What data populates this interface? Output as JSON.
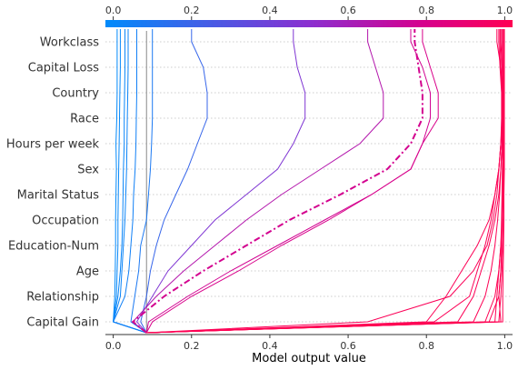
{
  "chart_data": {
    "type": "line",
    "xlabel": "Model output value",
    "xlim": [
      -0.02,
      1.02
    ],
    "x_ticks": [
      0.0,
      0.2,
      0.4,
      0.6,
      0.8,
      1.0
    ],
    "x_tick_labels": [
      "0.0",
      "0.2",
      "0.4",
      "0.6",
      "0.8",
      "1.0"
    ],
    "base_value": 0.085,
    "features": [
      "Workclass",
      "Capital Loss",
      "Country",
      "Race",
      "Hours per week",
      "Sex",
      "Marital Status",
      "Occupation",
      "Education-Num",
      "Age",
      "Relationship",
      "Capital Gain"
    ],
    "colorbar": [
      "#008bfb",
      "#ff0052"
    ],
    "grid": true,
    "highlighted_series_index": 11,
    "series": [
      {
        "values": [
          0.085,
          0.0,
          0.004,
          0.005,
          0.006,
          0.006,
          0.007,
          0.008,
          0.007,
          0.009,
          0.01,
          0.01,
          0.01
        ]
      },
      {
        "values": [
          0.085,
          0.0,
          0.008,
          0.01,
          0.012,
          0.012,
          0.013,
          0.014,
          0.015,
          0.016,
          0.017,
          0.018,
          0.018
        ]
      },
      {
        "values": [
          0.085,
          0.0,
          0.012,
          0.018,
          0.022,
          0.024,
          0.025,
          0.026,
          0.028,
          0.028,
          0.029,
          0.03,
          0.03
        ]
      },
      {
        "values": [
          0.085,
          0.0,
          0.018,
          0.022,
          0.026,
          0.03,
          0.032,
          0.034,
          0.035,
          0.036,
          0.037,
          0.038,
          0.038
        ]
      },
      {
        "values": [
          0.085,
          0.0,
          0.03,
          0.04,
          0.045,
          0.05,
          0.052,
          0.056,
          0.058,
          0.059,
          0.06,
          0.06,
          0.06
        ]
      },
      {
        "values": [
          0.085,
          0.045,
          0.055,
          0.065,
          0.07,
          0.085,
          0.09,
          0.095,
          0.098,
          0.1,
          0.1,
          0.1,
          0.1
        ]
      },
      {
        "values": [
          0.085,
          0.07,
          0.085,
          0.095,
          0.11,
          0.13,
          0.16,
          0.19,
          0.215,
          0.24,
          0.24,
          0.23,
          0.2
        ]
      },
      {
        "values": [
          0.085,
          0.06,
          0.1,
          0.14,
          0.2,
          0.26,
          0.34,
          0.42,
          0.46,
          0.49,
          0.49,
          0.47,
          0.46
        ]
      },
      {
        "values": [
          0.085,
          0.05,
          0.11,
          0.18,
          0.26,
          0.34,
          0.43,
          0.53,
          0.63,
          0.69,
          0.69,
          0.67,
          0.65
        ]
      },
      {
        "values": [
          0.085,
          0.09,
          0.19,
          0.3,
          0.42,
          0.54,
          0.66,
          0.76,
          0.79,
          0.81,
          0.81,
          0.79,
          0.76
        ]
      },
      {
        "values": [
          0.085,
          0.1,
          0.2,
          0.32,
          0.43,
          0.55,
          0.66,
          0.76,
          0.79,
          0.83,
          0.83,
          0.81,
          0.79
        ]
      },
      {
        "values": [
          0.085,
          0.05,
          0.13,
          0.23,
          0.34,
          0.45,
          0.58,
          0.7,
          0.76,
          0.79,
          0.79,
          0.78,
          0.77
        ]
      },
      {
        "values": [
          0.085,
          0.65,
          0.86,
          0.92,
          0.955,
          0.97,
          0.98,
          0.985,
          0.99,
          0.995,
          0.995,
          0.99,
          0.98
        ]
      },
      {
        "values": [
          0.085,
          0.82,
          0.91,
          0.93,
          0.95,
          0.965,
          0.975,
          0.985,
          0.99,
          0.992,
          0.992,
          0.988,
          0.985
        ]
      },
      {
        "values": [
          0.085,
          0.8,
          0.85,
          0.89,
          0.93,
          0.96,
          0.975,
          0.985,
          0.99,
          0.993,
          0.993,
          0.99,
          0.988
        ]
      },
      {
        "values": [
          0.085,
          0.88,
          0.92,
          0.94,
          0.96,
          0.975,
          0.985,
          0.99,
          0.993,
          0.995,
          0.995,
          0.993,
          0.99
        ]
      },
      {
        "values": [
          0.085,
          0.92,
          0.95,
          0.965,
          0.975,
          0.982,
          0.987,
          0.99,
          0.993,
          0.995,
          0.995,
          0.994,
          0.993
        ]
      },
      {
        "values": [
          0.085,
          0.95,
          0.975,
          0.985,
          0.99,
          0.992,
          0.993,
          0.994,
          0.995,
          0.996,
          0.996,
          0.996,
          0.996
        ]
      },
      {
        "values": [
          0.085,
          0.96,
          0.985,
          0.99,
          0.992,
          0.993,
          0.994,
          0.995,
          0.996,
          0.997,
          0.997,
          0.997,
          0.997
        ]
      },
      {
        "values": [
          0.085,
          0.99,
          0.985,
          0.99,
          0.992,
          0.993,
          0.994,
          0.995,
          0.996,
          0.997,
          0.998,
          0.998,
          0.998
        ]
      },
      {
        "values": [
          0.085,
          0.975,
          0.98,
          0.985,
          0.99,
          0.993,
          0.995,
          0.996,
          0.997,
          0.998,
          0.998,
          0.998,
          0.998
        ]
      },
      {
        "values": [
          0.085,
          0.985,
          0.99,
          0.993,
          0.995,
          0.996,
          0.997,
          0.998,
          0.998,
          0.999,
          0.999,
          0.999,
          0.999
        ]
      },
      {
        "values": [
          0.085,
          0.995,
          0.995,
          0.996,
          0.997,
          0.998,
          0.998,
          0.999,
          0.999,
          0.999,
          0.999,
          0.999,
          0.999
        ]
      }
    ]
  }
}
